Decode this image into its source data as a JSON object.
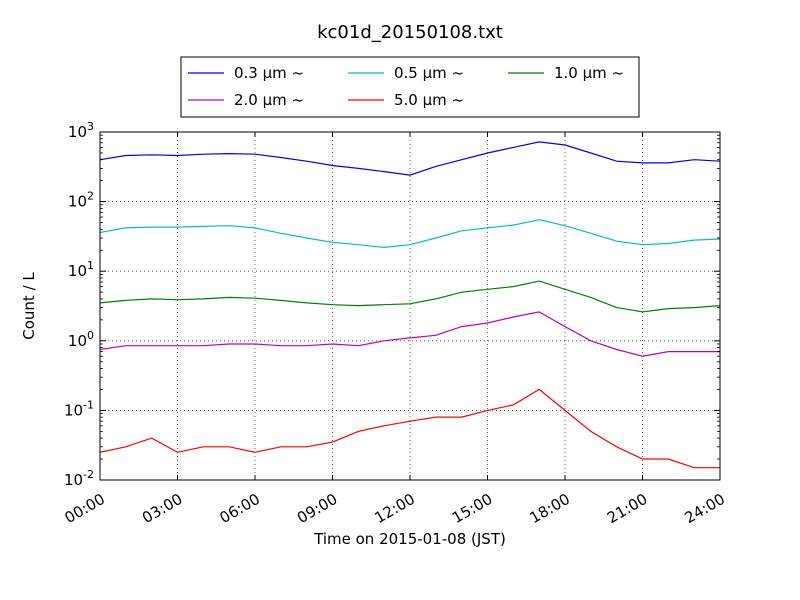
{
  "chart_data": {
    "type": "line",
    "title": "kc01d_20150108.txt",
    "xlabel": "Time on 2015-01-08 (JST)",
    "ylabel": "Count / L",
    "y_scale": "log",
    "ylim": [
      0.01,
      1000
    ],
    "xlim": [
      "00:00",
      "24:00"
    ],
    "grid": "dotted",
    "legend_placement": "top-center (above plot)",
    "x_tick_labels": [
      "00:00",
      "03:00",
      "06:00",
      "09:00",
      "12:00",
      "15:00",
      "18:00",
      "21:00",
      "24:00"
    ],
    "y_tick_labels": [
      {
        "base": "10",
        "exp": "-2"
      },
      {
        "base": "10",
        "exp": "-1"
      },
      {
        "base": "10",
        "exp": "0"
      },
      {
        "base": "10",
        "exp": "1"
      },
      {
        "base": "10",
        "exp": "2"
      },
      {
        "base": "10",
        "exp": "3"
      }
    ],
    "x": [
      "00:00",
      "01:00",
      "02:00",
      "03:00",
      "04:00",
      "05:00",
      "06:00",
      "07:00",
      "08:00",
      "09:00",
      "10:00",
      "11:00",
      "12:00",
      "13:00",
      "14:00",
      "15:00",
      "16:00",
      "17:00",
      "18:00",
      "19:00",
      "20:00",
      "21:00",
      "22:00",
      "23:00",
      "24:00"
    ],
    "series": [
      {
        "name": "0.3 μm ~",
        "color": "#0000ff",
        "values": [
          400,
          460,
          470,
          460,
          480,
          490,
          480,
          430,
          380,
          330,
          300,
          270,
          240,
          320,
          400,
          500,
          600,
          720,
          650,
          500,
          380,
          360,
          360,
          400,
          380
        ]
      },
      {
        "name": "0.5 μm ~",
        "color": "#00bfbf",
        "values": [
          36,
          42,
          43,
          43,
          44,
          45,
          42,
          35,
          30,
          26,
          24,
          22,
          24,
          30,
          38,
          42,
          46,
          55,
          45,
          35,
          27,
          24,
          25,
          28,
          29
        ]
      },
      {
        "name": "1.0 μm ~",
        "color": "#008000",
        "values": [
          3.5,
          3.8,
          4.0,
          3.9,
          4.0,
          4.2,
          4.1,
          3.8,
          3.5,
          3.3,
          3.2,
          3.3,
          3.4,
          4.0,
          5.0,
          5.5,
          6.0,
          7.2,
          5.5,
          4.2,
          3.0,
          2.6,
          2.9,
          3.0,
          3.2
        ]
      },
      {
        "name": "2.0 μm ~",
        "color": "#bf00bf",
        "values": [
          0.75,
          0.85,
          0.85,
          0.85,
          0.85,
          0.9,
          0.9,
          0.85,
          0.85,
          0.9,
          0.85,
          1.0,
          1.1,
          1.2,
          1.6,
          1.8,
          2.2,
          2.6,
          1.6,
          1.0,
          0.75,
          0.6,
          0.7,
          0.7,
          0.7
        ]
      },
      {
        "name": "5.0 μm ~",
        "color": "#ff0000",
        "values": [
          0.025,
          0.03,
          0.04,
          0.025,
          0.03,
          0.03,
          0.025,
          0.03,
          0.03,
          0.035,
          0.05,
          0.06,
          0.07,
          0.08,
          0.08,
          0.1,
          0.12,
          0.2,
          0.1,
          0.05,
          0.03,
          0.02,
          0.02,
          0.015,
          0.015
        ]
      }
    ]
  }
}
